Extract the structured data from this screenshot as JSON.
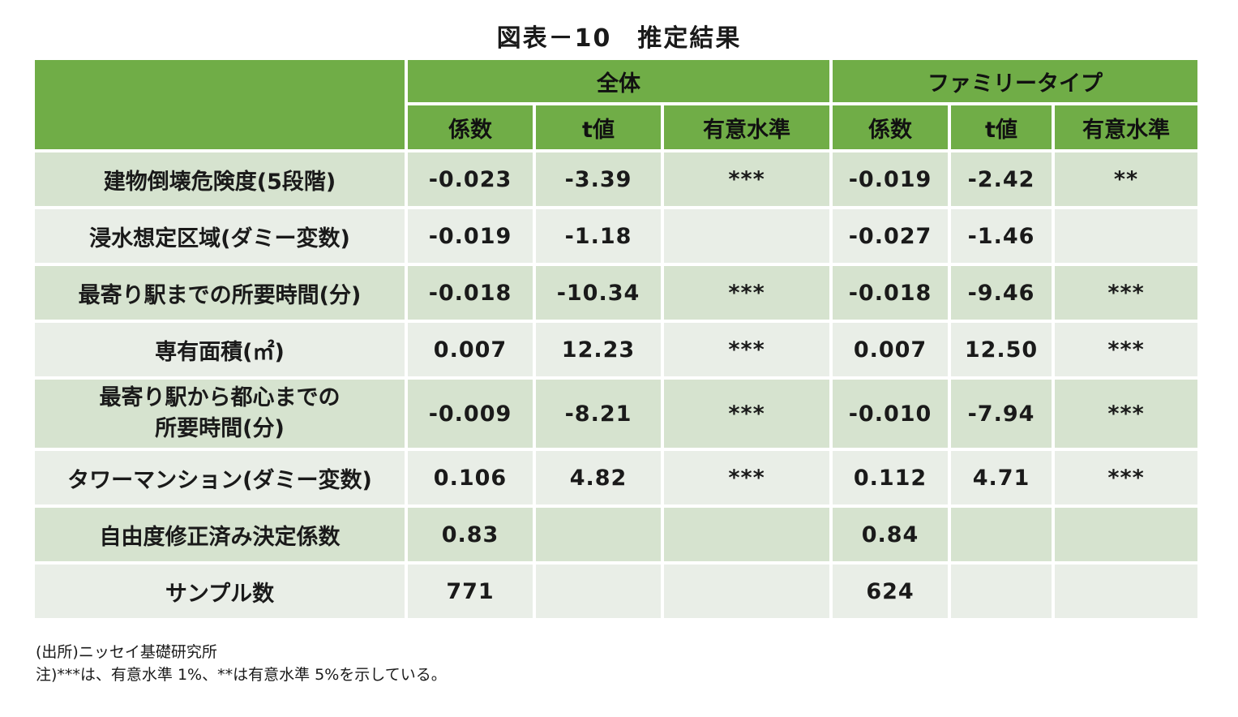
{
  "title": "図表－10　推定結果",
  "header": {
    "group_all": "全体",
    "group_family": "ファミリータイプ",
    "col_coef": "係数",
    "col_t": "t値",
    "col_sig": "有意水準"
  },
  "rows": [
    {
      "label": "建物倒壊危険度(5段階)",
      "all_coef": "-0.023",
      "all_t": "-3.39",
      "all_sig": "***",
      "fam_coef": "-0.019",
      "fam_t": "-2.42",
      "fam_sig": "**"
    },
    {
      "label": "浸水想定区域(ダミー変数)",
      "all_coef": "-0.019",
      "all_t": "-1.18",
      "all_sig": "",
      "fam_coef": "-0.027",
      "fam_t": "-1.46",
      "fam_sig": ""
    },
    {
      "label": "最寄り駅までの所要時間(分)",
      "all_coef": "-0.018",
      "all_t": "-10.34",
      "all_sig": "***",
      "fam_coef": "-0.018",
      "fam_t": "-9.46",
      "fam_sig": "***"
    },
    {
      "label": "専有面積(㎡)",
      "all_coef": "0.007",
      "all_t": "12.23",
      "all_sig": "***",
      "fam_coef": "0.007",
      "fam_t": "12.50",
      "fam_sig": "***"
    },
    {
      "label_line1": "最寄り駅から都心までの",
      "label_line2": "所要時間(分)",
      "all_coef": "-0.009",
      "all_t": "-8.21",
      "all_sig": "***",
      "fam_coef": "-0.010",
      "fam_t": "-7.94",
      "fam_sig": "***"
    },
    {
      "label": "タワーマンション(ダミー変数)",
      "all_coef": "0.106",
      "all_t": "4.82",
      "all_sig": "***",
      "fam_coef": "0.112",
      "fam_t": "4.71",
      "fam_sig": "***"
    },
    {
      "label": "自由度修正済み決定係数",
      "all_coef": "0.83",
      "all_t": "",
      "all_sig": "",
      "fam_coef": "0.84",
      "fam_t": "",
      "fam_sig": ""
    },
    {
      "label": "サンプル数",
      "all_coef": "771",
      "all_t": "",
      "all_sig": "",
      "fam_coef": "624",
      "fam_t": "",
      "fam_sig": ""
    }
  ],
  "notes": {
    "source": "(出所)ニッセイ基礎研究所",
    "footnote": "注)***は、有意水準 1%、**は有意水準 5%を示している。"
  },
  "colors": {
    "header_green": "#70ad47",
    "row_dark": "#d6e3cf",
    "row_light": "#e9eee7"
  }
}
